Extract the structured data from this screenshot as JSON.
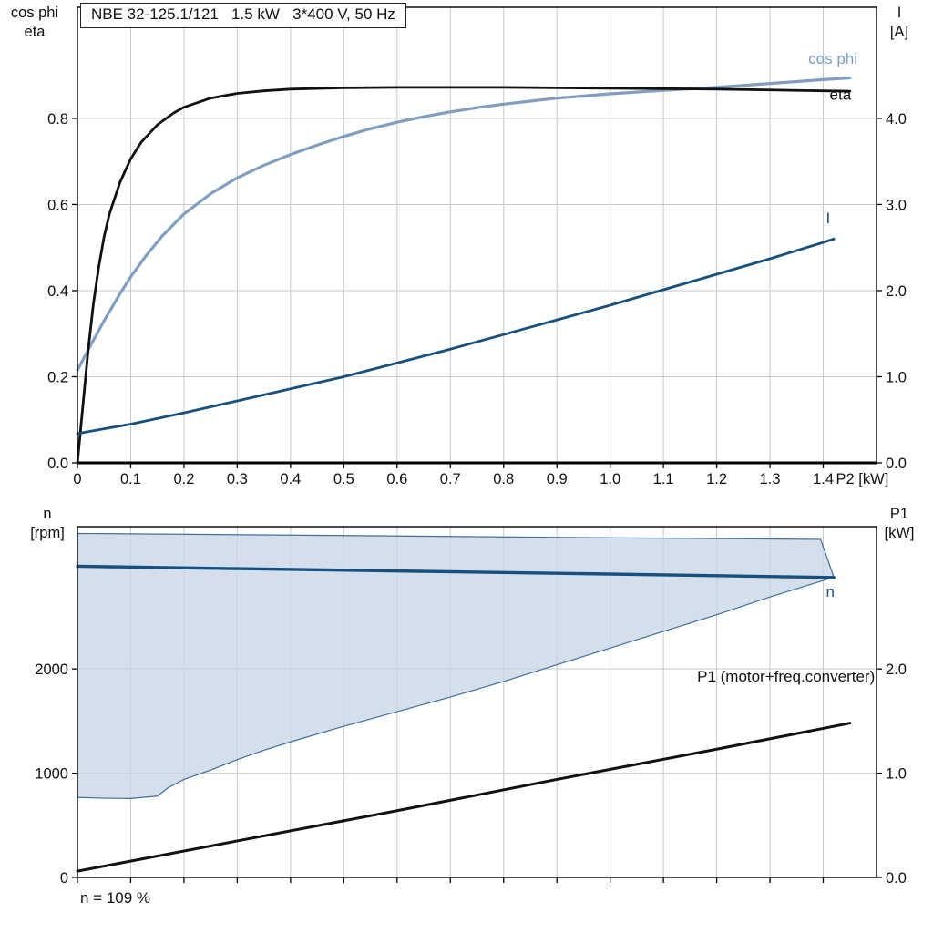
{
  "title": "NBE 32-125.1/121   1.5 kW   3*400 V, 50 Hz",
  "footer_note": "n = 109 %",
  "chart_data": [
    {
      "type": "line",
      "title": "NBE 32-125.1/121   1.5 kW   3*400 V, 50 Hz",
      "x_axis": {
        "label": "P2 [kW]",
        "range": [
          0,
          1.5
        ],
        "ticks": [
          [
            0,
            "0"
          ],
          [
            0.1,
            "0.1"
          ],
          [
            0.2,
            "0.2"
          ],
          [
            0.3,
            "0.3"
          ],
          [
            0.4,
            "0.4"
          ],
          [
            0.5,
            "0.5"
          ],
          [
            0.6,
            "0.6"
          ],
          [
            0.7,
            "0.7"
          ],
          [
            0.8,
            "0.8"
          ],
          [
            0.9,
            "0.9"
          ],
          [
            1,
            "1.0"
          ],
          [
            1.1,
            "1.1"
          ],
          [
            1.2,
            "1.2"
          ],
          [
            1.3,
            "1.3"
          ],
          [
            1.4,
            "1.4"
          ]
        ]
      },
      "left_axis": {
        "label_lines": [
          "cos phi",
          "eta"
        ],
        "range": [
          0,
          1.058
        ],
        "ticks": [
          [
            0,
            "0.0"
          ],
          [
            0.2,
            "0.2"
          ],
          [
            0.4,
            "0.4"
          ],
          [
            0.6,
            "0.6"
          ],
          [
            0.8,
            "0.8"
          ]
        ]
      },
      "right_axis": {
        "label_lines": [
          "I",
          "[A]"
        ],
        "range": [
          0,
          5.29
        ],
        "ticks": [
          [
            0,
            "0.0"
          ],
          [
            1,
            "1.0"
          ],
          [
            2,
            "2.0"
          ],
          [
            3,
            "3.0"
          ],
          [
            4,
            "4.0"
          ]
        ]
      },
      "grid": true,
      "legend_position": "inline-labels",
      "series": [
        {
          "name": "cos phi",
          "axis": "left",
          "color": "#7f9ec2",
          "width": 3.2,
          "points": [
            [
              0,
              0.215
            ],
            [
              0.02,
              0.262
            ],
            [
              0.05,
              0.33
            ],
            [
              0.08,
              0.393
            ],
            [
              0.1,
              0.432
            ],
            [
              0.13,
              0.483
            ],
            [
              0.16,
              0.528
            ],
            [
              0.2,
              0.578
            ],
            [
              0.25,
              0.625
            ],
            [
              0.3,
              0.662
            ],
            [
              0.35,
              0.691
            ],
            [
              0.4,
              0.716
            ],
            [
              0.45,
              0.738
            ],
            [
              0.5,
              0.758
            ],
            [
              0.55,
              0.776
            ],
            [
              0.6,
              0.791
            ],
            [
              0.65,
              0.804
            ],
            [
              0.7,
              0.815
            ],
            [
              0.75,
              0.825
            ],
            [
              0.8,
              0.833
            ],
            [
              0.85,
              0.84
            ],
            [
              0.9,
              0.847
            ],
            [
              0.95,
              0.852
            ],
            [
              1,
              0.857
            ],
            [
              1.1,
              0.865
            ],
            [
              1.2,
              0.872
            ],
            [
              1.3,
              0.881
            ],
            [
              1.4,
              0.89
            ],
            [
              1.45,
              0.894
            ]
          ]
        },
        {
          "name": "eta",
          "axis": "left",
          "color": "#111111",
          "width": 2.8,
          "points": [
            [
              0,
              0
            ],
            [
              0.01,
              0.13
            ],
            [
              0.02,
              0.26
            ],
            [
              0.03,
              0.37
            ],
            [
              0.04,
              0.455
            ],
            [
              0.05,
              0.525
            ],
            [
              0.06,
              0.578
            ],
            [
              0.08,
              0.652
            ],
            [
              0.1,
              0.706
            ],
            [
              0.12,
              0.745
            ],
            [
              0.15,
              0.785
            ],
            [
              0.18,
              0.812
            ],
            [
              0.2,
              0.826
            ],
            [
              0.25,
              0.847
            ],
            [
              0.3,
              0.858
            ],
            [
              0.35,
              0.864
            ],
            [
              0.4,
              0.868
            ],
            [
              0.5,
              0.871
            ],
            [
              0.6,
              0.872
            ],
            [
              0.7,
              0.872
            ],
            [
              0.8,
              0.872
            ],
            [
              0.9,
              0.871
            ],
            [
              1,
              0.87
            ],
            [
              1.1,
              0.869
            ],
            [
              1.2,
              0.868
            ],
            [
              1.3,
              0.866
            ],
            [
              1.4,
              0.864
            ],
            [
              1.45,
              0.863
            ]
          ]
        },
        {
          "name": "I",
          "axis": "right",
          "color": "#17507e",
          "width": 2.8,
          "points": [
            [
              0,
              0.34
            ],
            [
              0.1,
              0.45
            ],
            [
              0.2,
              0.58
            ],
            [
              0.3,
              0.72
            ],
            [
              0.4,
              0.86
            ],
            [
              0.5,
              1.0
            ],
            [
              0.6,
              1.16
            ],
            [
              0.7,
              1.32
            ],
            [
              0.8,
              1.49
            ],
            [
              0.9,
              1.66
            ],
            [
              1,
              1.83
            ],
            [
              1.1,
              2.01
            ],
            [
              1.2,
              2.19
            ],
            [
              1.3,
              2.37
            ],
            [
              1.4,
              2.56
            ],
            [
              1.42,
              2.6
            ]
          ]
        }
      ],
      "curve_labels": [
        {
          "text": "cos phi",
          "x": 1.372,
          "y": 0.927,
          "axis": "left",
          "color": "#7f9ec2",
          "anchor": "start"
        },
        {
          "text": "eta",
          "x": 1.412,
          "y": 0.843,
          "axis": "left",
          "color": "#111111",
          "anchor": "start"
        },
        {
          "text": "I",
          "x": 1.405,
          "y": 2.78,
          "axis": "right",
          "color": "#17507e",
          "anchor": "start"
        }
      ]
    },
    {
      "type": "line",
      "x_axis": {
        "label": "",
        "range": [
          0,
          1.5
        ],
        "ticks": [
          [
            0,
            ""
          ],
          [
            0.1,
            ""
          ],
          [
            0.2,
            ""
          ],
          [
            0.3,
            ""
          ],
          [
            0.4,
            ""
          ],
          [
            0.5,
            ""
          ],
          [
            0.6,
            ""
          ],
          [
            0.7,
            ""
          ],
          [
            0.8,
            ""
          ],
          [
            0.9,
            ""
          ],
          [
            1,
            ""
          ],
          [
            1.1,
            ""
          ],
          [
            1.2,
            ""
          ],
          [
            1.3,
            ""
          ],
          [
            1.4,
            ""
          ]
        ]
      },
      "left_axis": {
        "label_lines": [
          "n",
          "[rpm]"
        ],
        "range": [
          0,
          3365
        ],
        "ticks": [
          [
            0,
            "0"
          ],
          [
            1000,
            "1000"
          ],
          [
            2000,
            "2000"
          ]
        ]
      },
      "right_axis": {
        "label_lines": [
          "P1",
          "[kW]"
        ],
        "range": [
          0,
          3.365
        ],
        "ticks": [
          [
            0,
            "0.0"
          ],
          [
            1,
            "1.0"
          ],
          [
            2,
            "2.0"
          ]
        ]
      },
      "grid": true,
      "region": {
        "name": "speed-operating-range",
        "fill": "#c9d6e5",
        "stroke": "#3f6fa0",
        "points": [
          [
            0,
            3300
          ],
          [
            0.5,
            3280
          ],
          [
            1,
            3258
          ],
          [
            1.395,
            3243
          ],
          [
            1.42,
            2880
          ],
          [
            1.3,
            2690
          ],
          [
            1.2,
            2520
          ],
          [
            1.1,
            2360
          ],
          [
            1,
            2200
          ],
          [
            0.9,
            2040
          ],
          [
            0.8,
            1880
          ],
          [
            0.7,
            1730
          ],
          [
            0.6,
            1590
          ],
          [
            0.5,
            1450
          ],
          [
            0.4,
            1300
          ],
          [
            0.35,
            1220
          ],
          [
            0.3,
            1130
          ],
          [
            0.25,
            1030
          ],
          [
            0.2,
            940
          ],
          [
            0.17,
            860
          ],
          [
            0.15,
            780
          ],
          [
            0.1,
            757
          ],
          [
            0.05,
            760
          ],
          [
            0,
            768
          ]
        ]
      },
      "series": [
        {
          "name": "n",
          "axis": "left",
          "color": "#17507e",
          "width": 3.4,
          "points": [
            [
              0,
              2985
            ],
            [
              0.3,
              2962
            ],
            [
              0.6,
              2940
            ],
            [
              0.9,
              2918
            ],
            [
              1.2,
              2895
            ],
            [
              1.42,
              2877
            ]
          ]
        },
        {
          "name": "P1 (motor+freq.converter)",
          "axis": "right",
          "color": "#111111",
          "width": 3,
          "points": [
            [
              0,
              0.06
            ],
            [
              0.3,
              0.35
            ],
            [
              0.6,
              0.64
            ],
            [
              0.9,
              0.94
            ],
            [
              1.2,
              1.23
            ],
            [
              1.45,
              1.48
            ]
          ]
        }
      ],
      "curve_labels": [
        {
          "text": "n",
          "x": 1.405,
          "y": 2690,
          "axis": "left",
          "color": "#17507e",
          "anchor": "start"
        },
        {
          "text": "P1 (motor+freq.converter)",
          "x": 1.497,
          "y": 1.88,
          "axis": "right",
          "color": "#111111",
          "anchor": "end"
        }
      ],
      "footnote": "n = 109 %"
    }
  ]
}
